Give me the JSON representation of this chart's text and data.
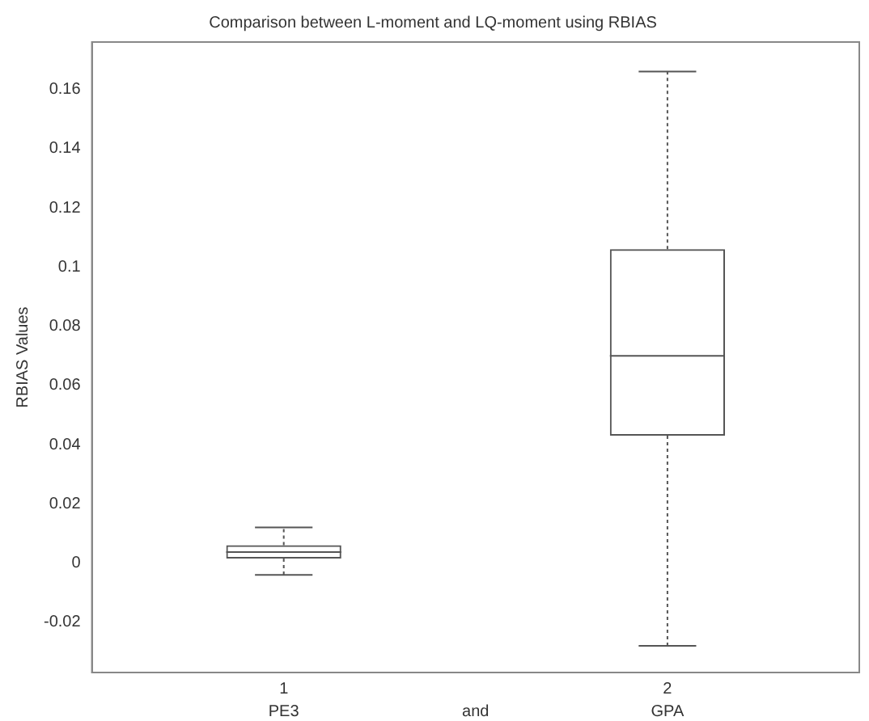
{
  "chart_data": {
    "type": "box",
    "title": "Comparison between L-moment and LQ-moment using RBIAS",
    "ylabel": "RBIAS Values",
    "categories": [
      "1",
      "2"
    ],
    "boxes": [
      {
        "low": -0.004,
        "q1": 0.0015,
        "median": 0.0037,
        "q3": 0.006,
        "high": 0.012
      },
      {
        "low": -0.028,
        "q1": 0.043,
        "median": 0.07,
        "q3": 0.106,
        "high": 0.166
      }
    ],
    "color": "#555555",
    "ylim": [
      -0.037,
      0.176
    ],
    "yticks": [
      -0.02,
      0,
      0.02,
      0.04,
      0.06,
      0.08,
      0.1,
      0.12,
      0.14,
      0.16
    ],
    "annotations": [
      "PE3",
      "and",
      "GPA"
    ],
    "grid": false,
    "legend": false
  }
}
